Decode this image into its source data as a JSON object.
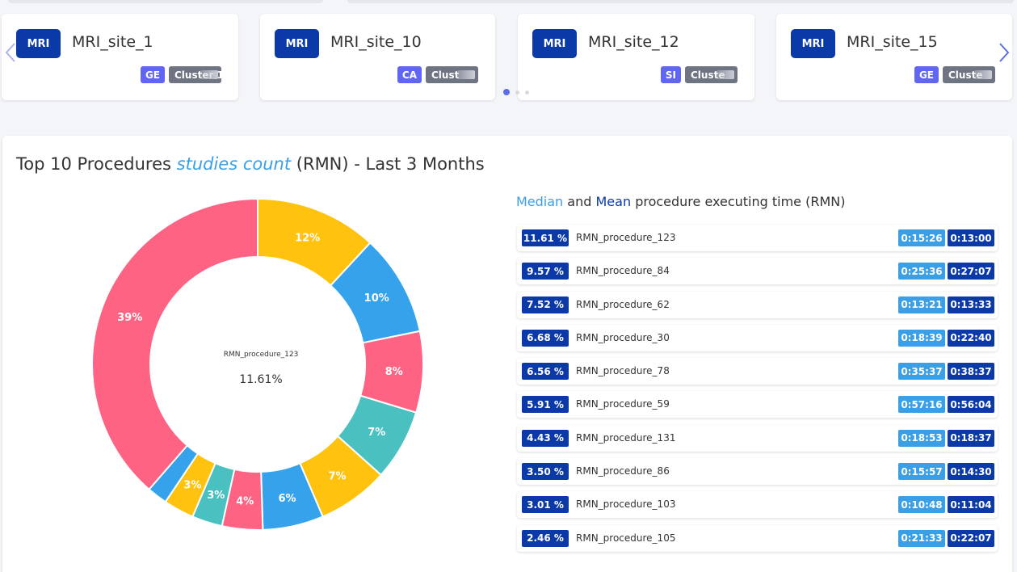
{
  "carousel": {
    "cards": [
      {
        "modality": "MRI",
        "name": "MRI_site_1",
        "brand": "GE",
        "cluster": "Cluster 1"
      },
      {
        "modality": "MRI",
        "name": "MRI_site_10",
        "brand": "CA",
        "cluster": "Clust"
      },
      {
        "modality": "MRI",
        "name": "MRI_site_12",
        "brand": "SI",
        "cluster": "Cluste"
      },
      {
        "modality": "MRI",
        "name": "MRI_site_15",
        "brand": "GE",
        "cluster": "Cluste"
      }
    ],
    "prev_icon": "chevron-left-icon",
    "next_icon": "chevron-right-icon",
    "pages": 3,
    "active_page": 1
  },
  "panel": {
    "title_prefix": "Top 10 Procedures",
    "title_accent": "studies count",
    "title_suffix": "(RMN) - Last 3 Months",
    "center_label": "RMN_procedure_123",
    "center_value": "11.61%"
  },
  "chart_data": {
    "type": "pie",
    "labels": [
      "12%",
      "10%",
      "8%",
      "7%",
      "7%",
      "6%",
      "4%",
      "3%",
      "3%",
      "",
      "39%"
    ],
    "values": [
      12,
      10,
      8,
      7,
      7,
      6,
      4,
      3,
      3,
      2,
      39
    ],
    "colors": [
      "#ffc20e",
      "#36a2eb",
      "#ff6384",
      "#4bc0c0",
      "#ffc20e",
      "#36a2eb",
      "#ff6384",
      "#4bc0c0",
      "#ffc20e",
      "#36a2eb",
      "#ff6384"
    ]
  },
  "table": {
    "title_median": "Median",
    "title_and": "and",
    "title_mean": "Mean",
    "title_rest": "procedure executing time (RMN)",
    "rows": [
      {
        "pct": "11.61 %",
        "name": "RMN_procedure_123",
        "median": "0:15:26",
        "mean": "0:13:00"
      },
      {
        "pct": "9.57 %",
        "name": "RMN_procedure_84",
        "median": "0:25:36",
        "mean": "0:27:07"
      },
      {
        "pct": "7.52 %",
        "name": "RMN_procedure_62",
        "median": "0:13:21",
        "mean": "0:13:33"
      },
      {
        "pct": "6.68 %",
        "name": "RMN_procedure_30",
        "median": "0:18:39",
        "mean": "0:22:40"
      },
      {
        "pct": "6.56 %",
        "name": "RMN_procedure_78",
        "median": "0:35:37",
        "mean": "0:38:37"
      },
      {
        "pct": "5.91 %",
        "name": "RMN_procedure_59",
        "median": "0:57:16",
        "mean": "0:56:04"
      },
      {
        "pct": "4.43 %",
        "name": "RMN_procedure_131",
        "median": "0:18:53",
        "mean": "0:18:37"
      },
      {
        "pct": "3.50 %",
        "name": "RMN_procedure_86",
        "median": "0:15:57",
        "mean": "0:14:30"
      },
      {
        "pct": "3.01 %",
        "name": "RMN_procedure_103",
        "median": "0:10:48",
        "mean": "0:11:04"
      },
      {
        "pct": "2.46 %",
        "name": "RMN_procedure_105",
        "median": "0:21:33",
        "mean": "0:22:07"
      }
    ]
  }
}
